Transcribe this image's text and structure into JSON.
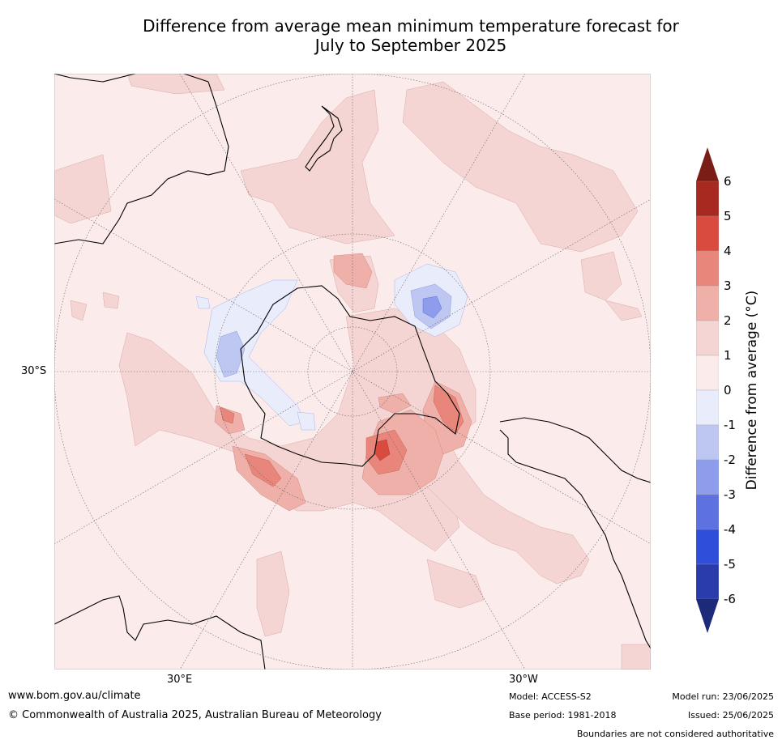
{
  "title": {
    "line1": "Difference from average mean minimum temperature forecast for",
    "line2": "July to September 2025"
  },
  "map": {
    "projection": "south-polar-stereographic",
    "lat_label": "30°S",
    "lon_labels": [
      "30°E",
      "30°W"
    ],
    "landmasses": [
      "Antarctica",
      "Australia",
      "New Zealand",
      "South America",
      "Africa"
    ]
  },
  "colorbar": {
    "label": "Difference from average (°C)",
    "ticks": [
      "6",
      "5",
      "4",
      "3",
      "2",
      "1",
      "0",
      "-1",
      "-2",
      "-3",
      "-4",
      "-5",
      "-6"
    ],
    "colors": {
      "above_6": "#7a1d16",
      "5_to_6": "#a8291f",
      "4_to_5": "#d84b3e",
      "3_to_4": "#e8867b",
      "2_to_3": "#eeb0a8",
      "1_to_2": "#f4d5d3",
      "0_to_1": "#fbeceb",
      "m1_to_0": "#e8ecfb",
      "m2_to_m1": "#bec6f2",
      "m3_to_m2": "#8d9ceb",
      "m4_to_m3": "#5d72e0",
      "m5_to_m4": "#2f4fdb",
      "m6_to_m5": "#2a3cab",
      "below_m6": "#1d2a7a"
    }
  },
  "footer": {
    "url": "www.bom.gov.au/climate",
    "copyright": "© Commonwealth of Australia 2025, Australian Bureau of Meteorology",
    "model": "Model: ACCESS-S2",
    "base_period": "Base period: 1981-2018",
    "model_run": "Model run: 23/06/2025",
    "issued": "Issued: 25/06/2025",
    "disclaimer": "Boundaries are not considered authoritative"
  }
}
